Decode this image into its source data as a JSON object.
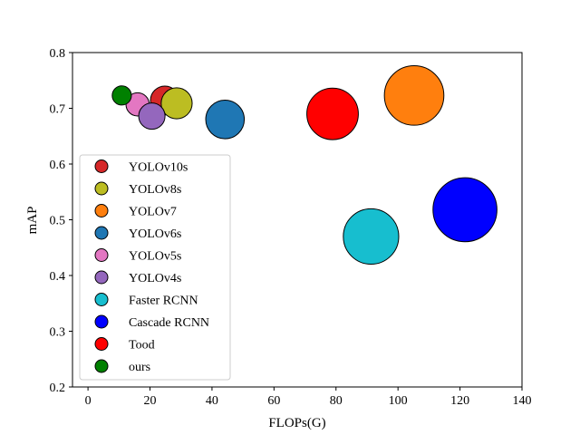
{
  "chart_data": {
    "type": "scatter",
    "title": "",
    "xlabel": "FLOPs(G)",
    "ylabel": "mAP",
    "xlim": [
      -5,
      140
    ],
    "ylim": [
      0.2,
      0.8
    ],
    "xticks": [
      0,
      20,
      40,
      60,
      80,
      100,
      120,
      140
    ],
    "yticks": [
      0.2,
      0.3,
      0.4,
      0.5,
      0.6,
      0.7,
      0.8
    ],
    "xtick_labels": [
      "0",
      "20",
      "40",
      "60",
      "80",
      "100",
      "120",
      "140"
    ],
    "ytick_labels": [
      "0.2",
      "0.3",
      "0.4",
      "0.5",
      "0.6",
      "0.7",
      "0.8"
    ],
    "grid": false,
    "legend_position": "lower-left",
    "note": "bubble size proportional to FLOPs",
    "series": [
      {
        "name": "YOLOv10s",
        "x": 24.8,
        "y": 0.714,
        "color": "#d62728"
      },
      {
        "name": "YOLOv8s",
        "x": 28.6,
        "y": 0.709,
        "color": "#bcbd22"
      },
      {
        "name": "YOLOv7",
        "x": 105.2,
        "y": 0.723,
        "color": "#ff7f0e"
      },
      {
        "name": "YOLOv6s",
        "x": 44.2,
        "y": 0.68,
        "color": "#1f77b4"
      },
      {
        "name": "YOLOv5s",
        "x": 16.0,
        "y": 0.707,
        "color": "#e377c2"
      },
      {
        "name": "YOLOv4s",
        "x": 20.6,
        "y": 0.686,
        "color": "#9467bd"
      },
      {
        "name": "Faster RCNN",
        "x": 91.3,
        "y": 0.47,
        "color": "#17becf"
      },
      {
        "name": "Cascade RCNN",
        "x": 121.6,
        "y": 0.518,
        "color": "#0000ff"
      },
      {
        "name": "Tood",
        "x": 78.9,
        "y": 0.69,
        "color": "#ff0000"
      },
      {
        "name": "ours",
        "x": 10.9,
        "y": 0.723,
        "color": "#008000"
      }
    ]
  }
}
